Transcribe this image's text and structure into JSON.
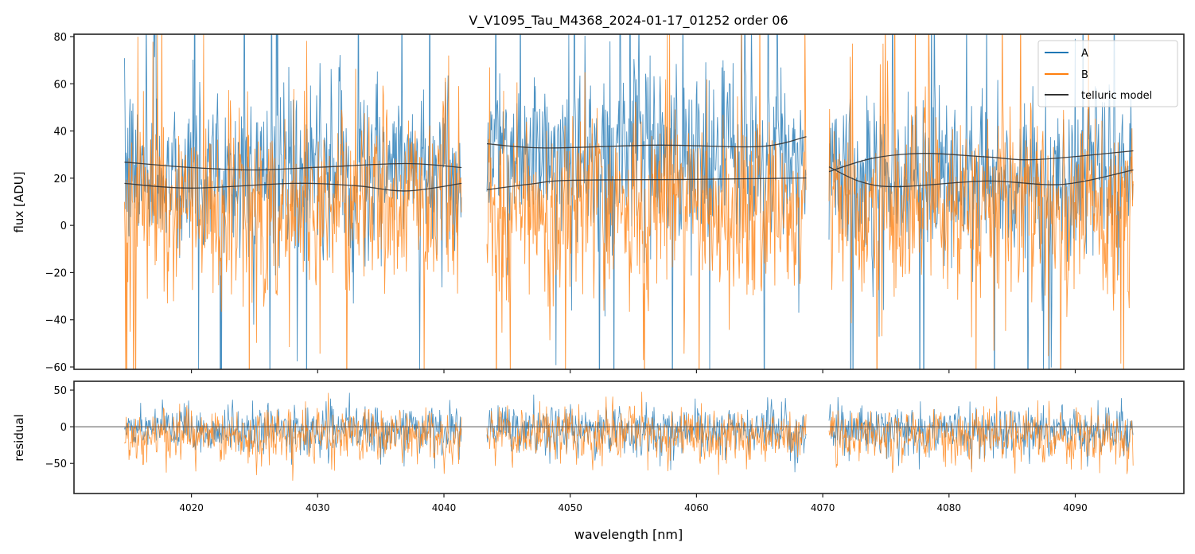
{
  "chart_data": [
    {
      "type": "line",
      "panel": "spectrum",
      "title": "V_V1095_Tau_M4368_2024-01-17_01252  order 06",
      "xlabel": "",
      "ylabel": "flux [ADU]",
      "xlim": [
        4010.7,
        4098.6
      ],
      "ylim": [
        -61,
        81
      ],
      "yticks": [
        -60,
        -40,
        -20,
        0,
        20,
        40,
        60,
        80
      ],
      "ytick_labels": [
        "−60",
        "−40",
        "−20",
        "0",
        "20",
        "40",
        "60",
        "80"
      ],
      "xticks": [
        4020,
        4030,
        4040,
        4050,
        4060,
        4070,
        4080,
        4090
      ],
      "grid": false,
      "legend": {
        "placement": "top-right",
        "entries": [
          "A",
          "B",
          "telluric model"
        ]
      },
      "segments": [
        [
          4014.7,
          4041.4
        ],
        [
          4043.4,
          4068.7
        ],
        [
          4070.5,
          4094.6
        ]
      ],
      "series": [
        {
          "name": "A",
          "color": "#1f77b4",
          "noise": {
            "center": 22,
            "spread": 22,
            "spike_max": 80
          }
        },
        {
          "name": "B",
          "color": "#ff7f0e",
          "noise": {
            "center": 8,
            "spread": 24,
            "spike_max": 60
          }
        }
      ],
      "telluric_model": {
        "name": "telluric model",
        "color": "#333333",
        "curves": [
          {
            "segment": 0,
            "trace": "A",
            "x": [
              4014.7,
              4020,
              4025,
              4030,
              4037,
              4041.4
            ],
            "y": [
              26.8,
              24.5,
              23.5,
              24.6,
              26.2,
              24.5
            ]
          },
          {
            "segment": 0,
            "trace": "B",
            "x": [
              4014.7,
              4020,
              4028,
              4033,
              4037,
              4041.4
            ],
            "y": [
              17.8,
              15.8,
              17.8,
              16.8,
              14.6,
              17.8
            ]
          },
          {
            "segment": 1,
            "trace": "A",
            "x": [
              4043.4,
              4048,
              4057,
              4065,
              4068.7
            ],
            "y": [
              34.6,
              32.8,
              34.0,
              33.4,
              37.6
            ]
          },
          {
            "segment": 1,
            "trace": "B",
            "x": [
              4043.4,
              4047,
              4050,
              4060,
              4068.7
            ],
            "y": [
              15.1,
              17.6,
              19.1,
              19.5,
              20.1
            ]
          },
          {
            "segment": 2,
            "trace": "A",
            "x": [
              4070.5,
              4074,
              4078,
              4083,
              4087,
              4094.6
            ],
            "y": [
              22.8,
              28.5,
              30.5,
              29.0,
              27.9,
              31.6
            ]
          },
          {
            "segment": 2,
            "trace": "B",
            "x": [
              4070.5,
              4073,
              4076,
              4083,
              4089,
              4094.6
            ],
            "y": [
              24.8,
              18.5,
              16.4,
              18.8,
              17.4,
              23.5
            ]
          }
        ]
      }
    },
    {
      "type": "line",
      "panel": "residual",
      "xlabel": "wavelength [nm]",
      "ylabel": "residual",
      "xlim": [
        4010.7,
        4098.6
      ],
      "ylim": [
        -91,
        62
      ],
      "yticks": [
        -50,
        0,
        50
      ],
      "ytick_labels": [
        "−50",
        "0",
        "50"
      ],
      "xticks": [
        4020,
        4030,
        4040,
        4050,
        4060,
        4070,
        4080,
        4090
      ],
      "xtick_labels": [
        "4020",
        "4030",
        "4040",
        "4050",
        "4060",
        "4070",
        "4080",
        "4090"
      ],
      "grid": false,
      "zero_line": 0,
      "segments": [
        [
          4014.7,
          4041.4
        ],
        [
          4043.4,
          4068.7
        ],
        [
          4070.5,
          4094.6
        ]
      ],
      "series": [
        {
          "name": "A",
          "color": "#1f77b4",
          "noise": {
            "center": -5,
            "spread": 20
          }
        },
        {
          "name": "B",
          "color": "#ff7f0e",
          "noise": {
            "center": -12,
            "spread": 22
          }
        }
      ]
    }
  ]
}
